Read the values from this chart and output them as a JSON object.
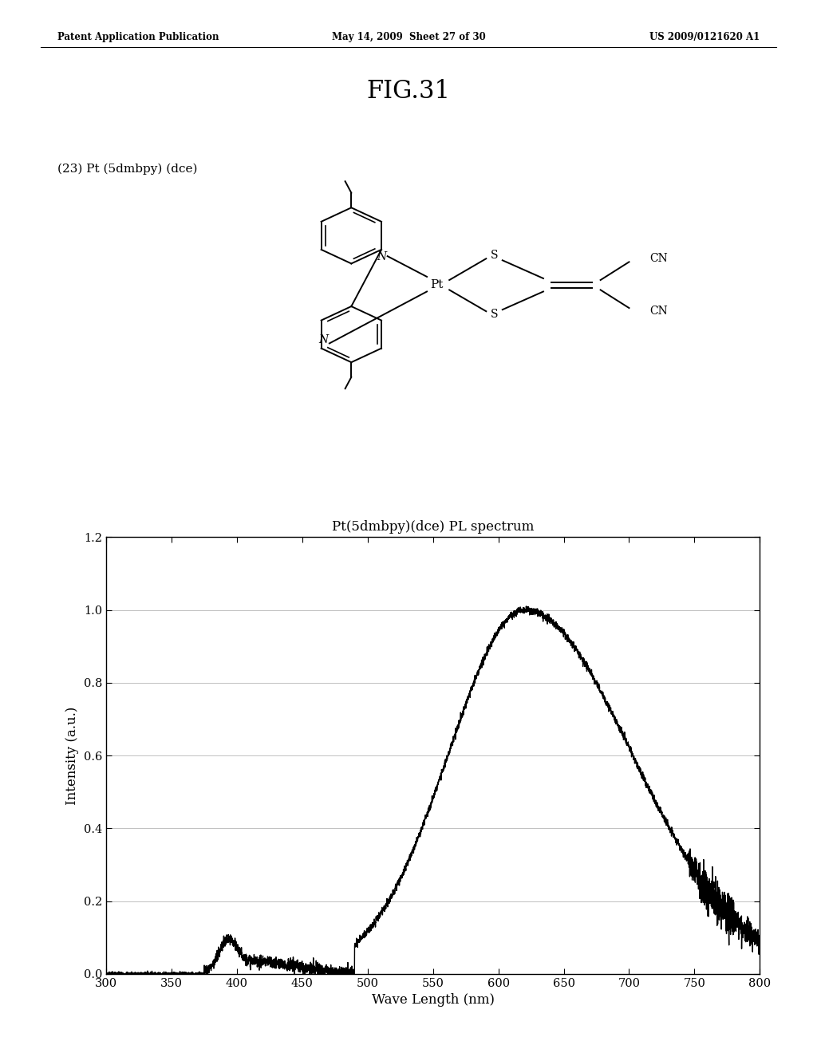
{
  "page_width": 10.24,
  "page_height": 13.2,
  "bg_color": "#ffffff",
  "header_left": "Patent Application Publication",
  "header_center": "May 14, 2009  Sheet 27 of 30",
  "header_right": "US 2009/0121620 A1",
  "fig_title": "FIG.31",
  "compound_label": "(23) Pt (5dmbpy) (dce)",
  "plot_title": "Pt(5dmbpy)(dce) PL spectrum",
  "xlabel": "Wave Length (nm)",
  "ylabel": "Intensity (a.u.)",
  "xlim": [
    300,
    800
  ],
  "ylim": [
    0.0,
    1.2
  ],
  "xticks": [
    300,
    350,
    400,
    450,
    500,
    550,
    600,
    650,
    700,
    750,
    800
  ],
  "yticks": [
    0.0,
    0.2,
    0.4,
    0.6,
    0.8,
    1.0,
    1.2
  ],
  "plot_color": "#000000"
}
